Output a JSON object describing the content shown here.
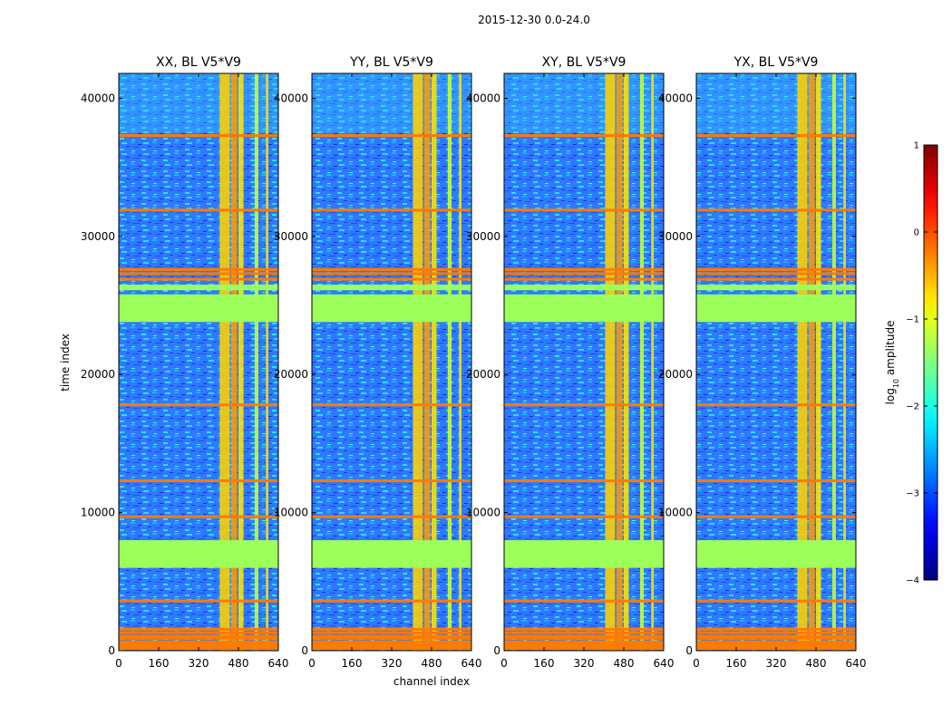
{
  "suptitle": "2015-12-30 0.0-24.0",
  "colors": {
    "bad_rows": "#ff7a00",
    "flagged_block": "#9cff5a",
    "background": "#2a6cff"
  },
  "chart_data": {
    "type": "heatmap",
    "colormap": "jet",
    "panels": [
      {
        "title": "XX, BL V5*V9",
        "pol": "XX"
      },
      {
        "title": "YY, BL V5*V9",
        "pol": "YY"
      },
      {
        "title": "XY, BL V5*V9",
        "pol": "XY"
      },
      {
        "title": "YX, BL V5*V9",
        "pol": "YX"
      }
    ],
    "xlabel": "channel index",
    "ylabel": "time index",
    "xlim": [
      0,
      640
    ],
    "ylim": [
      0,
      41800
    ],
    "xticks": [
      0,
      160,
      320,
      480,
      640
    ],
    "yticks": [
      0,
      10000,
      20000,
      30000,
      40000
    ],
    "colorbar": {
      "label": "log10 amplitude",
      "label_base": "log",
      "label_sub": "10",
      "label_rest": " amplitude",
      "min": -4,
      "max": 1,
      "ticks": [
        1,
        0,
        -1,
        -2,
        -3,
        -4
      ],
      "tick_labels": [
        "1",
        "0",
        "−1",
        "−2",
        "−3",
        "−4"
      ]
    },
    "bright_channel_bands": [
      [
        405,
        445
      ],
      [
        450,
        475
      ],
      [
        480,
        500
      ],
      [
        545,
        560
      ],
      [
        590,
        600
      ]
    ],
    "flagged_time_ranges": [
      [
        6000,
        8000
      ],
      [
        23800,
        25800
      ],
      [
        26100,
        26500
      ]
    ],
    "bad_time_rows": [
      150,
      300,
      450,
      650,
      900,
      1050,
      1300,
      1550,
      3600,
      9700,
      12300,
      17800,
      26900,
      27300,
      27600,
      31900,
      37300
    ]
  }
}
